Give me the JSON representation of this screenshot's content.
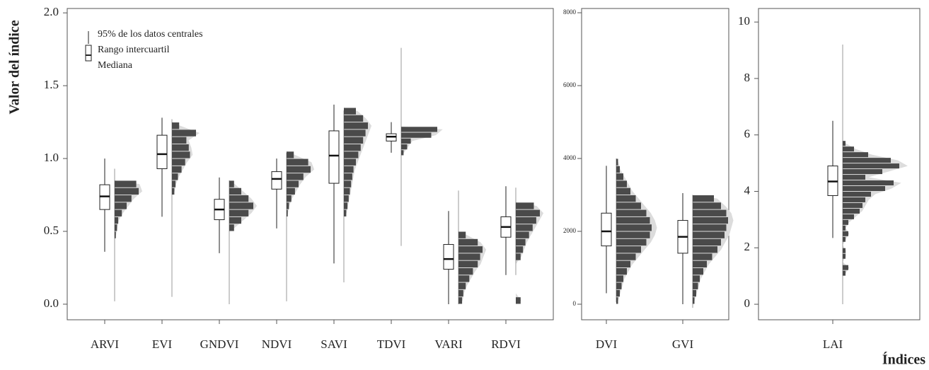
{
  "chart_data": [
    {
      "type": "box",
      "ylabel": "Valor del índice",
      "legend": [
        "95% de los datos centrales",
        "Rango intercuartil",
        "Mediana"
      ],
      "categories": [
        "ARVI",
        "EVI",
        "GNDVI",
        "NDVI",
        "SAVI",
        "TDVI",
        "VARI",
        "RDVI"
      ],
      "ylim": [
        -0.107,
        2.03
      ],
      "yticks": [
        {
          "value": 0,
          "label": "0.0"
        },
        0.5,
        {
          "value": 1,
          "label": "1.0"
        },
        1.5,
        {
          "value": 2,
          "label": "2.0"
        }
      ],
      "stats": [
        {
          "min": 0.02,
          "whisker_low": 0.36,
          "q1": 0.65,
          "median": 0.74,
          "q3": 0.82,
          "whisker_high": 1.0,
          "max": 0.93,
          "bins": [
            0.45,
            0.5,
            0.55,
            0.6,
            0.65,
            0.7,
            0.75,
            0.8,
            0.85
          ],
          "counts": [
            0.05,
            0.1,
            0.15,
            0.3,
            0.5,
            0.7,
            1.0,
            0.9
          ]
        },
        {
          "min": 0.05,
          "whisker_low": 0.6,
          "q1": 0.93,
          "median": 1.03,
          "q3": 1.16,
          "whisker_high": 1.28,
          "max": 1.27,
          "bins": [
            0.75,
            0.8,
            0.85,
            0.9,
            0.95,
            1.0,
            1.05,
            1.1,
            1.15,
            1.2,
            1.25
          ],
          "counts": [
            0.1,
            0.15,
            0.25,
            0.4,
            0.55,
            0.75,
            0.7,
            0.6,
            1.0,
            0.3
          ]
        },
        {
          "min": 0.0,
          "whisker_low": 0.35,
          "q1": 0.58,
          "median": 0.65,
          "q3": 0.72,
          "whisker_high": 0.87,
          "max": 0.85,
          "bins": [
            0.5,
            0.55,
            0.6,
            0.65,
            0.7,
            0.75,
            0.8,
            0.85
          ],
          "counts": [
            0.2,
            0.5,
            0.8,
            1.0,
            0.8,
            0.5,
            0.2
          ]
        },
        {
          "min": 0.02,
          "whisker_low": 0.52,
          "q1": 0.79,
          "median": 0.86,
          "q3": 0.91,
          "whisker_high": 1.0,
          "max": 1.04,
          "bins": [
            0.6,
            0.65,
            0.7,
            0.75,
            0.8,
            0.85,
            0.9,
            0.95,
            1.0,
            1.05
          ],
          "counts": [
            0.05,
            0.1,
            0.2,
            0.35,
            0.5,
            0.7,
            1.0,
            0.9,
            0.3
          ]
        },
        {
          "min": 0.15,
          "whisker_low": 0.28,
          "q1": 0.83,
          "median": 1.02,
          "q3": 1.19,
          "whisker_high": 1.37,
          "max": 1.33,
          "bins": [
            0.6,
            0.65,
            0.7,
            0.75,
            0.8,
            0.85,
            0.9,
            0.95,
            1.0,
            1.05,
            1.1,
            1.15,
            1.2,
            1.25,
            1.3,
            1.35
          ],
          "counts": [
            0.1,
            0.15,
            0.2,
            0.25,
            0.3,
            0.35,
            0.4,
            0.5,
            0.6,
            0.7,
            0.8,
            0.9,
            1.0,
            0.8,
            0.5
          ]
        },
        {
          "min": 0.4,
          "whisker_low": 1.04,
          "q1": 1.12,
          "median": 1.15,
          "q3": 1.17,
          "whisker_high": 1.25,
          "max": 1.76,
          "bins": [
            1.02,
            1.06,
            1.1,
            1.14,
            1.18,
            1.22
          ],
          "counts": [
            0.1,
            0.25,
            0.4,
            1.25,
            1.5
          ]
        },
        {
          "min": 0.0,
          "whisker_low": 0.0,
          "q1": 0.24,
          "median": 0.31,
          "q3": 0.41,
          "whisker_high": 0.64,
          "max": 0.78,
          "bins": [
            0.0,
            0.05,
            0.1,
            0.15,
            0.2,
            0.25,
            0.3,
            0.35,
            0.4,
            0.45,
            0.5
          ],
          "counts": [
            0.15,
            0.2,
            0.3,
            0.45,
            0.6,
            0.8,
            0.9,
            1.0,
            0.8,
            0.3
          ]
        },
        {
          "min": 0.2,
          "whisker_low": 0.2,
          "q1": 0.46,
          "median": 0.53,
          "q3": 0.6,
          "whisker_high": 0.81,
          "max": 0.8,
          "bins": [
            0.0,
            0.05,
            0.1,
            0.15,
            0.2,
            0.25,
            0.3,
            0.35,
            0.4,
            0.45,
            0.5,
            0.55,
            0.6,
            0.65,
            0.7
          ],
          "counts": [
            0.2,
            0,
            0,
            0,
            0,
            0,
            0.2,
            0.3,
            0.4,
            0.55,
            0.7,
            0.85,
            1.0,
            0.75
          ]
        }
      ]
    },
    {
      "type": "box",
      "categories": [
        "DVI",
        "GVI"
      ],
      "ylim": [
        -427,
        8117
      ],
      "yticks": [
        0,
        2000,
        4000,
        6000,
        8000
      ],
      "stats": [
        {
          "min": 50,
          "whisker_low": 300,
          "q1": 1600,
          "median": 2000,
          "q3": 2500,
          "whisker_high": 3800,
          "max": 4000,
          "bins": [
            0,
            200,
            400,
            600,
            800,
            1000,
            1200,
            1400,
            1600,
            1800,
            2000,
            2200,
            2400,
            2600,
            2800,
            3000,
            3200,
            3400,
            3600,
            3800,
            4000
          ],
          "counts": [
            0.05,
            0.1,
            0.15,
            0.2,
            0.3,
            0.4,
            0.55,
            0.7,
            0.85,
            0.95,
            1.0,
            0.95,
            0.85,
            0.7,
            0.55,
            0.4,
            0.3,
            0.2,
            0.1,
            0.05
          ]
        },
        {
          "min": -100,
          "whisker_low": 0,
          "q1": 1400,
          "median": 1850,
          "q3": 2300,
          "whisker_high": 3050,
          "max": 3000,
          "bins": [
            0,
            200,
            400,
            600,
            800,
            1000,
            1200,
            1400,
            1600,
            1800,
            2000,
            2200,
            2400,
            2600,
            2800,
            3000
          ],
          "counts": [
            0.05,
            0.1,
            0.15,
            0.2,
            0.3,
            0.4,
            0.55,
            0.7,
            0.8,
            0.9,
            0.95,
            1.0,
            0.95,
            0.8,
            0.6
          ]
        }
      ]
    },
    {
      "type": "box",
      "xlabel": "Índices",
      "categories": [
        "LAI"
      ],
      "ylim": [
        -0.55,
        10.48
      ],
      "yticks": [
        0,
        2,
        4,
        6,
        8,
        10
      ],
      "stats": [
        {
          "min": 0,
          "whisker_low": 2.35,
          "q1": 3.85,
          "median": 4.35,
          "q3": 4.9,
          "whisker_high": 6.5,
          "max": 9.2,
          "bins": [
            1.0,
            1.2,
            1.4,
            1.6,
            1.8,
            2.0,
            2.2,
            2.4,
            2.6,
            2.8,
            3.0,
            3.2,
            3.4,
            3.6,
            3.8,
            4.0,
            4.2,
            4.4,
            4.6,
            4.8,
            5.0,
            5.2,
            5.4,
            5.6,
            5.8
          ],
          "counts": [
            0.05,
            0.1,
            0,
            0.05,
            0.05,
            0,
            0.05,
            0.1,
            0.05,
            0.1,
            0.2,
            0.3,
            0.35,
            0.4,
            0.5,
            0.75,
            0.9,
            0.4,
            0.7,
            1.0,
            0.85,
            0.45,
            0.2,
            0.05
          ]
        }
      ]
    }
  ]
}
